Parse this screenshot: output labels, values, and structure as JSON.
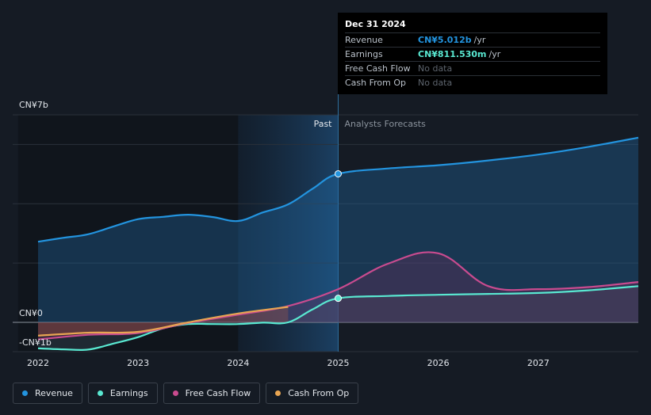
{
  "chart_data": {
    "type": "area",
    "x": [
      2022.0,
      2022.25,
      2022.5,
      2022.75,
      2023.0,
      2023.25,
      2023.5,
      2023.75,
      2024.0,
      2024.25,
      2024.5,
      2024.75,
      2025.0,
      2025.5,
      2026.0,
      2026.5,
      2027.0,
      2027.5,
      2028.0
    ],
    "series": [
      {
        "name": "Revenue",
        "color": "#2394df",
        "x": [
          2022.0,
          2022.25,
          2022.5,
          2022.75,
          2023.0,
          2023.25,
          2023.5,
          2023.75,
          2024.0,
          2024.25,
          2024.5,
          2024.75,
          2025.0,
          2025.5,
          2026.0,
          2026.5,
          2027.0,
          2027.5,
          2028.0
        ],
        "values": [
          2.72,
          2.85,
          2.97,
          3.23,
          3.48,
          3.56,
          3.63,
          3.55,
          3.42,
          3.71,
          3.98,
          4.52,
          5.01,
          5.19,
          5.3,
          5.46,
          5.66,
          5.92,
          6.23
        ]
      },
      {
        "name": "Earnings",
        "color": "#59e8d1",
        "x": [
          2022.0,
          2022.25,
          2022.5,
          2022.75,
          2023.0,
          2023.25,
          2023.5,
          2023.75,
          2024.0,
          2024.25,
          2024.5,
          2024.75,
          2025.0,
          2025.5,
          2026.0,
          2026.5,
          2027.0,
          2027.5,
          2028.0
        ],
        "values": [
          -0.88,
          -0.91,
          -0.92,
          -0.72,
          -0.5,
          -0.2,
          -0.06,
          -0.06,
          -0.06,
          -0.01,
          0.0,
          0.45,
          0.81,
          0.89,
          0.93,
          0.96,
          0.99,
          1.08,
          1.22
        ]
      },
      {
        "name": "Free Cash Flow",
        "color": "#c94b8f",
        "x": [
          2022.0,
          2022.5,
          2023.0,
          2023.5,
          2024.0,
          2024.5,
          2025.0,
          2025.5,
          2026.0,
          2026.5,
          2027.0,
          2027.5,
          2028.0
        ],
        "values": [
          -0.58,
          -0.42,
          -0.36,
          -0.02,
          0.26,
          0.55,
          1.12,
          1.98,
          2.33,
          1.22,
          1.12,
          1.19,
          1.36
        ]
      },
      {
        "name": "Cash From Op",
        "color": "#e8a552",
        "x": [
          2022.0,
          2022.5,
          2023.0,
          2023.5,
          2024.0,
          2024.5
        ],
        "values": [
          -0.45,
          -0.35,
          -0.32,
          0.0,
          0.3,
          0.52
        ]
      }
    ],
    "y_unit": "CN¥b",
    "ylim": [
      -1,
      7
    ],
    "xlim": [
      2021.8,
      2028.0
    ],
    "x_ticks": [
      "2022",
      "2023",
      "2024",
      "2025",
      "2026",
      "2027"
    ],
    "y_tick_labels": {
      "top": "CN¥7b",
      "zero": "CN¥0",
      "bottom": "-CN¥1b"
    },
    "regions": {
      "past": "Past",
      "forecast": "Analysts Forecasts"
    },
    "divider_x": 2025.0,
    "highlight_start": 2024.0,
    "grid": true,
    "legend_position": "bottom-left"
  },
  "tooltip": {
    "date": "Dec 31 2024",
    "rows": [
      {
        "label": "Revenue",
        "value": "CN¥5.012b",
        "unit": "/yr",
        "color": "#2394df"
      },
      {
        "label": "Earnings",
        "value": "CN¥811.530m",
        "unit": "/yr",
        "color": "#59e8d1"
      },
      {
        "label": "Free Cash Flow",
        "value": "No data",
        "unit": "",
        "color": ""
      },
      {
        "label": "Cash From Op",
        "value": "No data",
        "unit": "",
        "color": ""
      }
    ]
  },
  "legend": [
    {
      "label": "Revenue",
      "color": "#2394df"
    },
    {
      "label": "Earnings",
      "color": "#59e8d1"
    },
    {
      "label": "Free Cash Flow",
      "color": "#c94b8f"
    },
    {
      "label": "Cash From Op",
      "color": "#e8a552"
    }
  ]
}
